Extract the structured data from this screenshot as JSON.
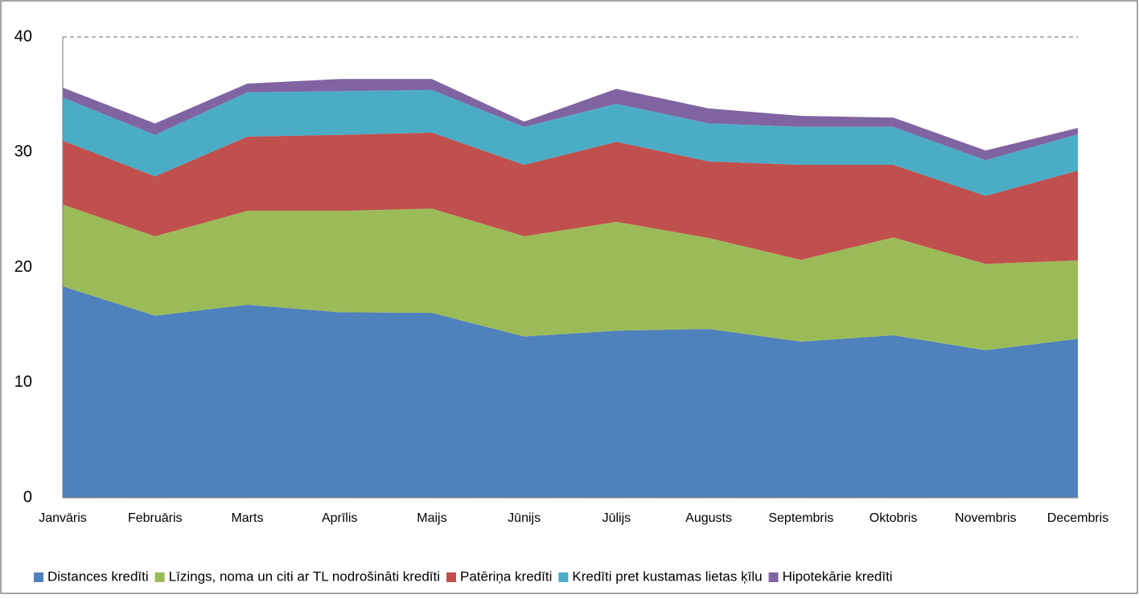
{
  "chart_data": {
    "type": "stacked_area",
    "categories": [
      "Janvāris",
      "Februāris",
      "Marts",
      "Aprīlis",
      "Maijs",
      "Jūnijs",
      "Jūlijs",
      "Augusts",
      "Septembris",
      "Oktobris",
      "Novembris",
      "Decembris"
    ],
    "series": [
      {
        "name": "Distances kredīti",
        "color": "#4f81bd",
        "values": [
          18.35,
          15.8,
          16.75,
          16.1,
          16.05,
          14.0,
          14.5,
          14.65,
          13.55,
          14.1,
          12.8,
          13.8
        ]
      },
      {
        "name": "Līzings, noma un citi ar TL nodrošināti kredīti",
        "color": "#9bbb59",
        "values": [
          7.1,
          6.9,
          8.15,
          8.8,
          9.05,
          8.7,
          9.45,
          7.9,
          7.1,
          8.5,
          7.5,
          6.8
        ]
      },
      {
        "name": "Patēriņa kredīti",
        "color": "#c0504d",
        "values": [
          5.55,
          5.2,
          6.45,
          6.6,
          6.6,
          6.2,
          6.95,
          6.65,
          8.25,
          6.3,
          5.9,
          7.8
        ]
      },
      {
        "name": "Kredīti pret kustamas lietas ķīlu",
        "color": "#4bacc6",
        "values": [
          3.75,
          3.6,
          3.85,
          3.8,
          3.7,
          3.3,
          3.3,
          3.3,
          3.3,
          3.3,
          3.1,
          3.15
        ]
      },
      {
        "name": "Hipotekārie kredīti",
        "color": "#8064a2",
        "values": [
          0.85,
          1.0,
          0.75,
          1.05,
          0.95,
          0.45,
          1.3,
          1.3,
          0.95,
          0.8,
          0.85,
          0.55
        ]
      }
    ],
    "ylim": [
      0,
      40
    ],
    "yticks": [
      0,
      10,
      20,
      30,
      40
    ],
    "grid": true,
    "legend": "bottom"
  }
}
